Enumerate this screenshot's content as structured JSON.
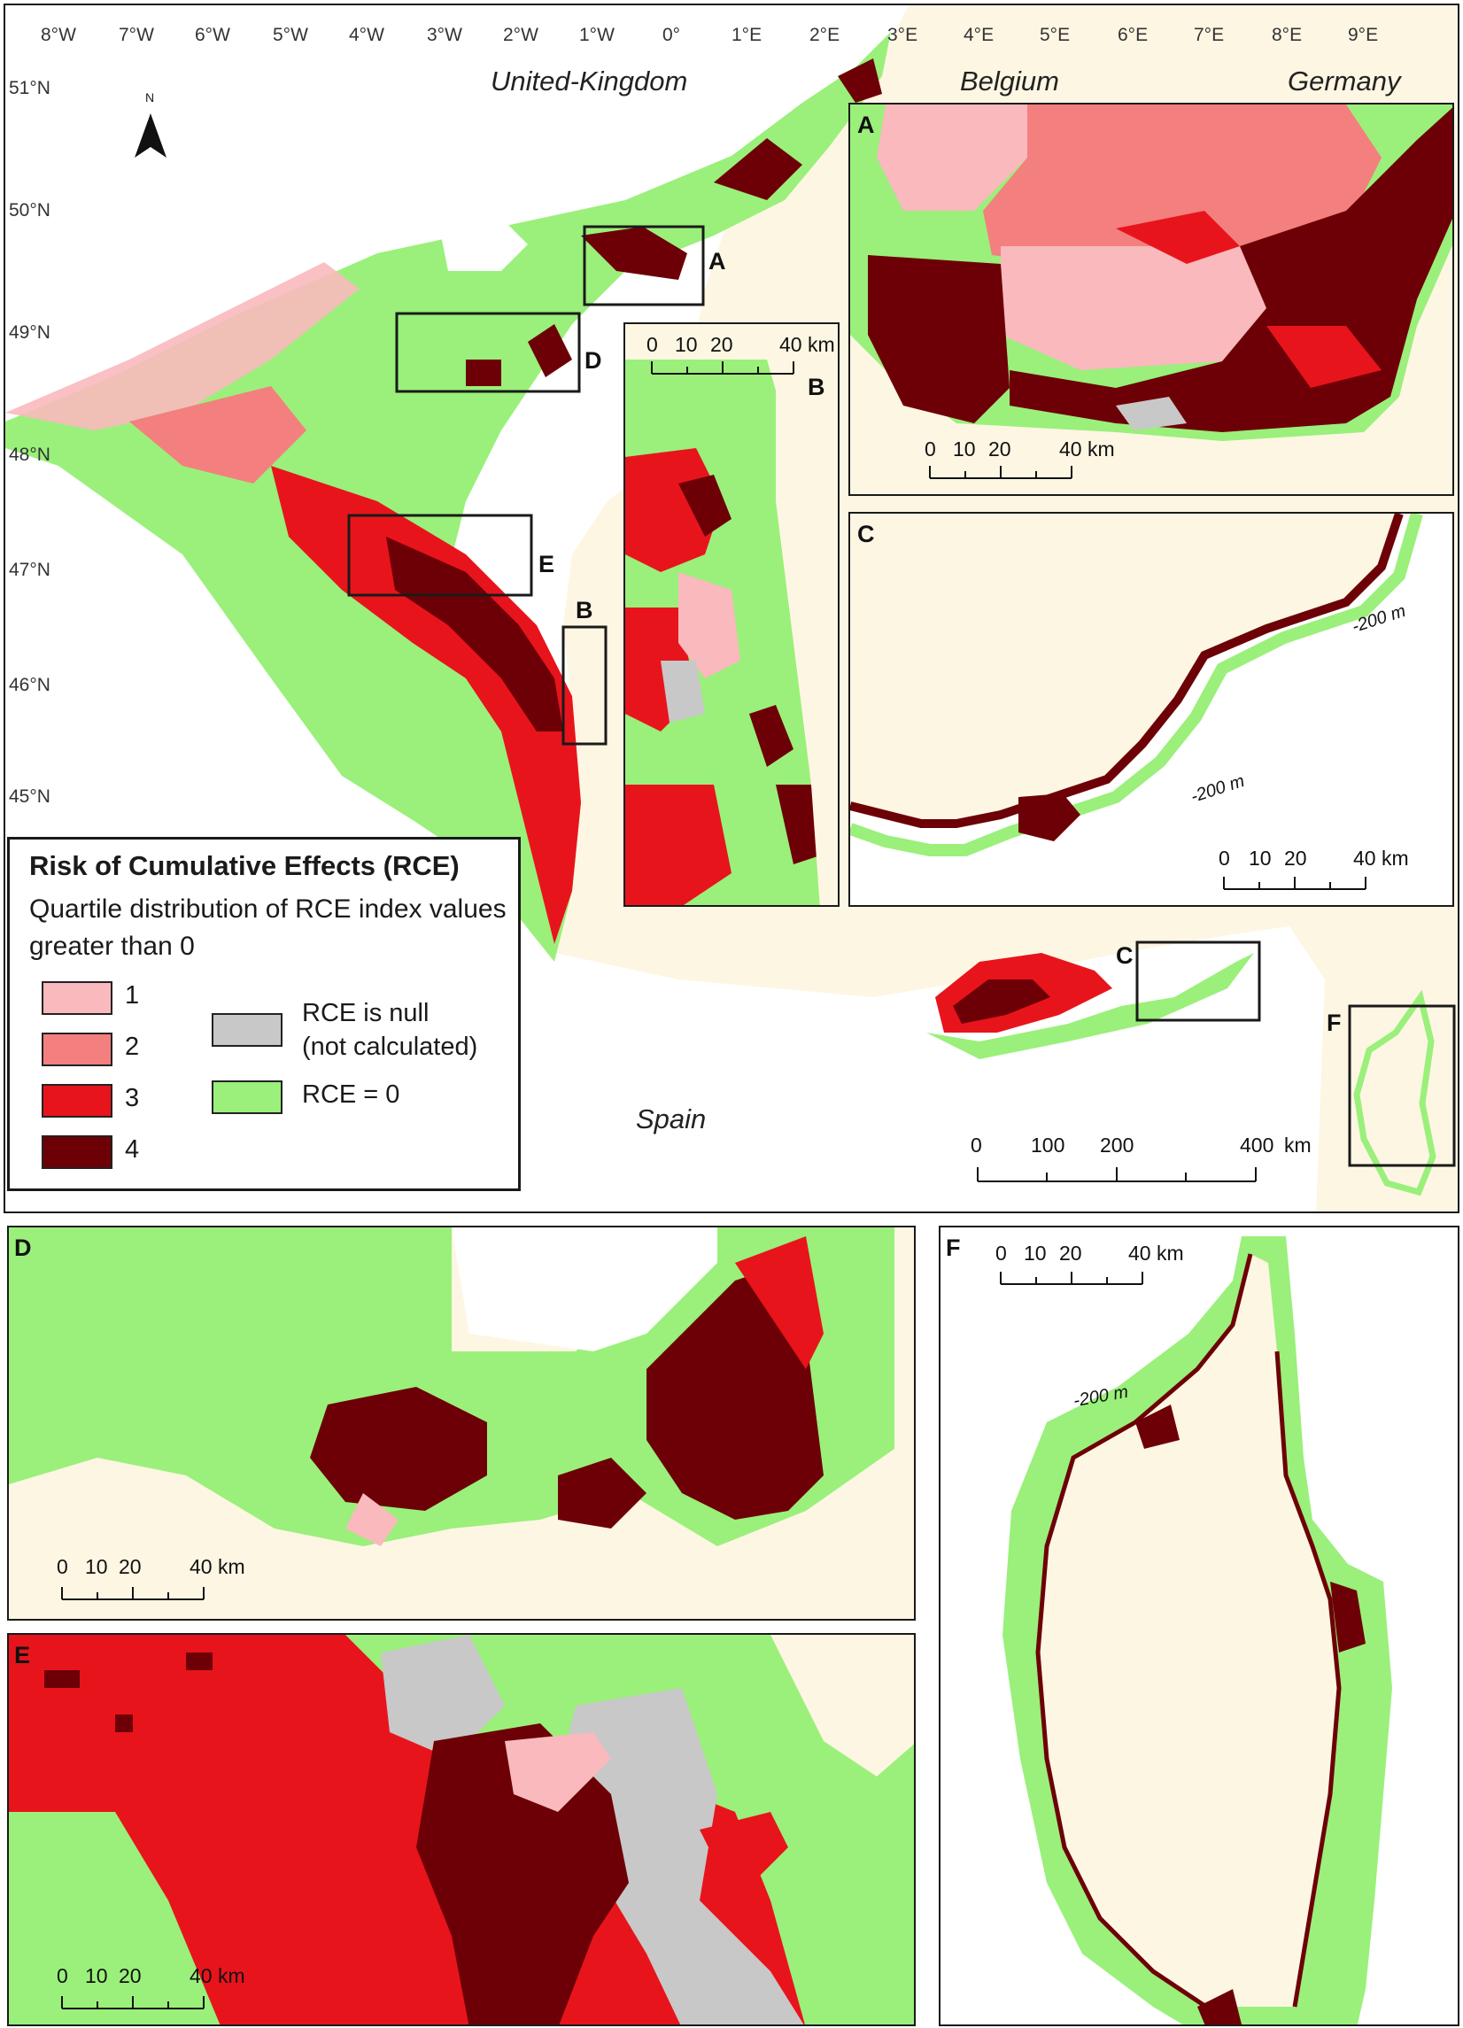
{
  "main_map": {
    "lon_labels": [
      "8°W",
      "7°W",
      "6°W",
      "5°W",
      "4°W",
      "3°W",
      "2°W",
      "1°W",
      "0°",
      "1°E",
      "2°E",
      "3°E",
      "4°E",
      "5°E",
      "6°E",
      "7°E",
      "8°E",
      "9°E"
    ],
    "lat_labels": [
      "51°N",
      "50°N",
      "49°N",
      "48°N",
      "47°N",
      "46°N",
      "45°N"
    ],
    "countries": {
      "uk": "United-Kingdom",
      "belgium": "Belgium",
      "germany": "Germany",
      "spain": "Spain"
    },
    "north_label": "N",
    "box_labels": {
      "a": "A",
      "b": "B",
      "c": "C",
      "d": "D",
      "e": "E",
      "f": "F"
    },
    "scale": {
      "ticks": [
        "0",
        "100",
        "200",
        "400"
      ],
      "unit": "km"
    }
  },
  "legend": {
    "title": "Risk of Cumulative Effects (RCE)",
    "subtitle": "Quartile distribution of RCE index values greater than 0",
    "classes": [
      {
        "label": "1",
        "color": "#f9b9bd"
      },
      {
        "label": "2",
        "color": "#f47f7f"
      },
      {
        "label": "3",
        "color": "#e8141c"
      },
      {
        "label": "4",
        "color": "#6d0006"
      }
    ],
    "null_label_1": "RCE is null",
    "null_label_2": "(not calculated)",
    "null_color": "#c8c8c8",
    "zero_label": "RCE = 0",
    "zero_color": "#9af07a"
  },
  "insets": {
    "a": {
      "letter": "A",
      "scale": {
        "ticks": [
          "0",
          "10",
          "20",
          "40"
        ],
        "unit": "km"
      }
    },
    "b": {
      "letter": "B",
      "scale": {
        "ticks": [
          "0",
          "10",
          "20",
          "40"
        ],
        "unit": "km"
      }
    },
    "c": {
      "letter": "C",
      "scale": {
        "ticks": [
          "0",
          "10",
          "20",
          "40"
        ],
        "unit": "km"
      },
      "depth": "-200 m"
    },
    "d": {
      "letter": "D",
      "scale": {
        "ticks": [
          "0",
          "10",
          "20",
          "40"
        ],
        "unit": "km"
      }
    },
    "e": {
      "letter": "E",
      "scale": {
        "ticks": [
          "0",
          "10",
          "20",
          "40"
        ],
        "unit": "km"
      }
    },
    "f": {
      "letter": "F",
      "scale": {
        "ticks": [
          "0",
          "10",
          "20",
          "40"
        ],
        "unit": "km"
      },
      "depth": "-200 m"
    }
  },
  "colors": {
    "land": "#fdf6e3",
    "sea": "#ffffff",
    "border": "#1a1a1a"
  }
}
